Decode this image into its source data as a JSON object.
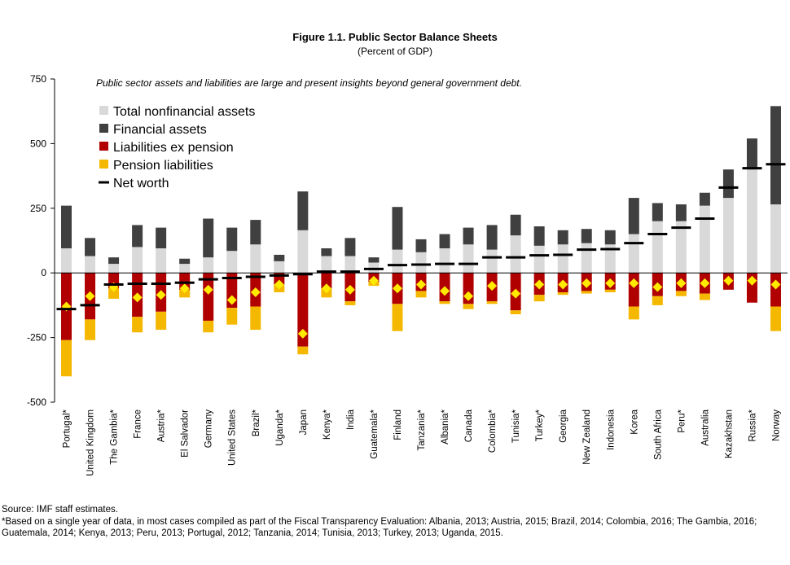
{
  "figure": {
    "title": "Figure 1.1. Public Sector Balance Sheets",
    "subtitle": "(Percent of GDP)"
  },
  "chart_data": {
    "type": "bar",
    "annotation": "Public sector assets and liabilities are large and present insights beyond general government debt.",
    "ylim": [
      -500,
      750
    ],
    "yticks": [
      750,
      500,
      250,
      0,
      -250,
      -500
    ],
    "legend_position": "top-left",
    "grid": false,
    "colors": {
      "nonfinancial": "#d9d9d9",
      "financial": "#404040",
      "liabilities": "#b00000",
      "pension": "#f5b800",
      "networth": "#000000",
      "marker": "#ffea00"
    },
    "legend": [
      {
        "key": "nonfinancial",
        "label": "Total nonfinancial assets",
        "kind": "box"
      },
      {
        "key": "financial",
        "label": "Financial assets",
        "kind": "box"
      },
      {
        "key": "liabilities",
        "label": "Liabilities ex pension",
        "kind": "box"
      },
      {
        "key": "pension",
        "label": "Pension liabilities",
        "kind": "box"
      },
      {
        "key": "networth",
        "label": "Net worth",
        "kind": "line"
      }
    ],
    "categories": [
      "Portugal*",
      "United Kingdom",
      "The Gambia*",
      "France",
      "Austria*",
      "El Salvador",
      "Germany",
      "United States",
      "Brazil*",
      "Uganda*",
      "Japan",
      "Kenya*",
      "India",
      "Guatemala*",
      "Finland",
      "Tanzania*",
      "Albania*",
      "Canada",
      "Colombia*",
      "Tunisia*",
      "Turkey*",
      "Georgia",
      "New Zealand",
      "Indonesia",
      "Korea",
      "South Africa",
      "Peru*",
      "Australia",
      "Kazakhstan",
      "Russia*",
      "Norway"
    ],
    "series": [
      {
        "name": "Total nonfinancial assets",
        "key": "nonfinancial",
        "values": [
          95,
          65,
          35,
          100,
          95,
          35,
          60,
          85,
          110,
          45,
          165,
          65,
          65,
          40,
          90,
          80,
          95,
          110,
          90,
          145,
          105,
          110,
          115,
          110,
          150,
          200,
          200,
          260,
          290,
          400,
          265
        ]
      },
      {
        "name": "Financial assets",
        "key": "financial",
        "values": [
          165,
          70,
          25,
          85,
          80,
          20,
          150,
          90,
          95,
          25,
          150,
          30,
          70,
          20,
          165,
          50,
          55,
          65,
          95,
          80,
          75,
          55,
          55,
          55,
          140,
          70,
          65,
          50,
          110,
          120,
          380
        ]
      },
      {
        "name": "Liabilities ex pension",
        "key": "liabilities",
        "values": [
          -260,
          -180,
          -60,
          -170,
          -150,
          -65,
          -185,
          -135,
          -130,
          -45,
          -285,
          -60,
          -110,
          -35,
          -120,
          -70,
          -110,
          -120,
          -110,
          -145,
          -85,
          -75,
          -70,
          -65,
          -130,
          -90,
          -70,
          -80,
          -65,
          -115,
          -130
        ]
      },
      {
        "name": "Pension liabilities",
        "key": "pension",
        "values": [
          -140,
          -80,
          -40,
          -60,
          -70,
          -30,
          -45,
          -65,
          -90,
          -30,
          -30,
          -35,
          -15,
          -15,
          -105,
          -25,
          -10,
          -20,
          -10,
          -15,
          -25,
          -10,
          -10,
          -10,
          -50,
          -35,
          -20,
          -25,
          0,
          0,
          -95
        ]
      },
      {
        "name": "Net worth",
        "key": "networth",
        "values": [
          -140,
          -125,
          -45,
          -42,
          -42,
          -38,
          -25,
          -20,
          -15,
          -10,
          -5,
          5,
          5,
          15,
          30,
          32,
          35,
          35,
          60,
          60,
          68,
          70,
          90,
          92,
          115,
          150,
          175,
          210,
          330,
          405,
          420
        ]
      },
      {
        "name": "",
        "key": "marker",
        "values": [
          -130,
          -90,
          -55,
          -95,
          -85,
          -60,
          -65,
          -105,
          -75,
          -45,
          -235,
          -60,
          -65,
          -30,
          -60,
          -45,
          -70,
          -90,
          -50,
          -80,
          -45,
          -45,
          -40,
          -40,
          -40,
          -55,
          -40,
          -40,
          -30,
          -30,
          -45
        ]
      }
    ]
  },
  "footnotes": {
    "source": "Source: IMF staff estimates.",
    "note": "*Based on a single year of data, in most cases compiled as part of the Fiscal Transparency Evaluation: Albania, 2013; Austria, 2015; Brazil, 2014; Colombia, 2016; The Gambia, 2016; Guatemala, 2014; Kenya, 2013; Peru, 2013; Portugal, 2012; Tanzania, 2014; Tunisia, 2013; Turkey, 2013; Uganda, 2015."
  }
}
